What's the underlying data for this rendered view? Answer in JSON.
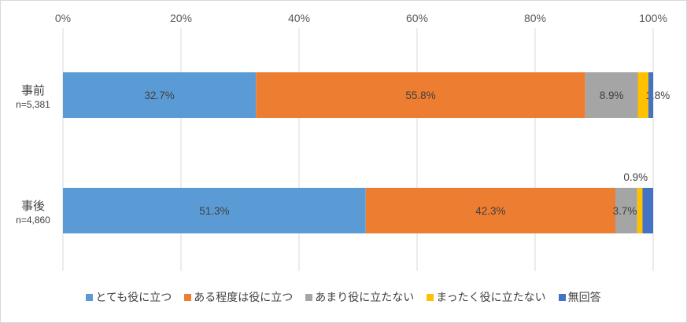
{
  "chart_data": {
    "type": "bar",
    "orientation": "horizontal",
    "stacked": "percent",
    "categories": [
      {
        "name": "事前",
        "n": "n=5,381"
      },
      {
        "name": "事後",
        "n": "n=4,860"
      }
    ],
    "x_ticks": [
      "0%",
      "20%",
      "40%",
      "60%",
      "80%",
      "100%"
    ],
    "xlim": [
      0,
      100
    ],
    "grid": true,
    "legend_position": "bottom",
    "series": [
      {
        "name": "とても役に立つ",
        "color": "#5b9bd5",
        "values": [
          32.7,
          51.3
        ],
        "labels": [
          "32.7%",
          "51.3%"
        ]
      },
      {
        "name": "ある程度は役に立つ",
        "color": "#ed7d31",
        "values": [
          55.8,
          42.3
        ],
        "labels": [
          "55.8%",
          "42.3%"
        ]
      },
      {
        "name": "あまり役に立たない",
        "color": "#a5a5a5",
        "values": [
          8.9,
          3.7
        ],
        "labels": [
          "8.9%",
          "3.7%"
        ]
      },
      {
        "name": "まったく役に立たない",
        "color": "#ffc000",
        "values": [
          1.8,
          0.9
        ],
        "labels": [
          "1.8%",
          "0.9%"
        ]
      },
      {
        "name": "無回答",
        "color": "#4472c4",
        "values": [
          0.8,
          1.8
        ],
        "labels": [
          "",
          ""
        ]
      }
    ]
  }
}
